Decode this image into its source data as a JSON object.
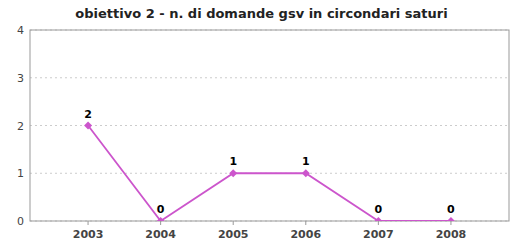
{
  "chart_data": {
    "type": "line",
    "title": "obiettivo 2 - n. di domande gsv in circondari saturi",
    "x": [
      2003,
      2004,
      2005,
      2006,
      2007,
      2008
    ],
    "values": [
      2,
      0,
      1,
      1,
      0,
      0
    ],
    "color": "#cc55cc",
    "marker": "diamond",
    "xlim": [
      2002.2,
      2008.8
    ],
    "xticks": [
      2003,
      2004,
      2005,
      2006,
      2007,
      2008
    ],
    "ylim": [
      0,
      4
    ],
    "yticks": [
      0,
      1,
      2,
      3,
      4
    ],
    "grid": true,
    "data_labels": true
  }
}
